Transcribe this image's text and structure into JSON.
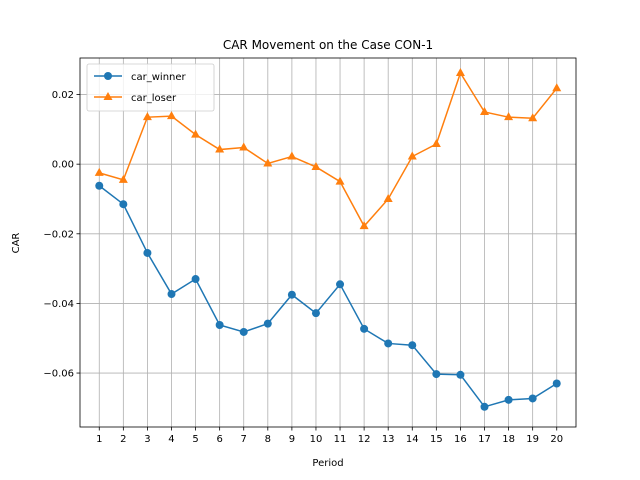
{
  "chart_data": {
    "type": "line",
    "title": "CAR Movement on the Case CON-1",
    "xlabel": "Period",
    "ylabel": "CAR",
    "x": [
      1,
      2,
      3,
      4,
      5,
      6,
      7,
      8,
      9,
      10,
      11,
      12,
      13,
      14,
      15,
      16,
      17,
      18,
      19,
      20
    ],
    "xlim": [
      0.2,
      20.8
    ],
    "ylim": [
      -0.0755,
      0.0305
    ],
    "yticks": [
      0.02,
      0.0,
      -0.02,
      -0.04,
      -0.06
    ],
    "ytick_labels": [
      "0.02",
      "0.00",
      "−0.02",
      "−0.04",
      "−0.06"
    ],
    "grid": true,
    "legend_position": "top-left",
    "series": [
      {
        "name": "car_winner",
        "color": "#1f77b4",
        "marker": "circle",
        "values": [
          -0.0062,
          -0.0115,
          -0.0255,
          -0.0373,
          -0.033,
          -0.0462,
          -0.0482,
          -0.0458,
          -0.0375,
          -0.0428,
          -0.0345,
          -0.0473,
          -0.0515,
          -0.052,
          -0.0603,
          -0.0605,
          -0.0697,
          -0.0677,
          -0.0673,
          -0.063
        ]
      },
      {
        "name": "car_loser",
        "color": "#ff7f0e",
        "marker": "triangle",
        "values": [
          -0.0025,
          -0.0045,
          0.0135,
          0.0138,
          0.0085,
          0.0042,
          0.0048,
          0.0002,
          0.0022,
          -0.0008,
          -0.005,
          -0.0178,
          -0.01,
          0.0022,
          0.0058,
          0.0262,
          0.015,
          0.0135,
          0.0132,
          0.0218
        ]
      }
    ]
  }
}
